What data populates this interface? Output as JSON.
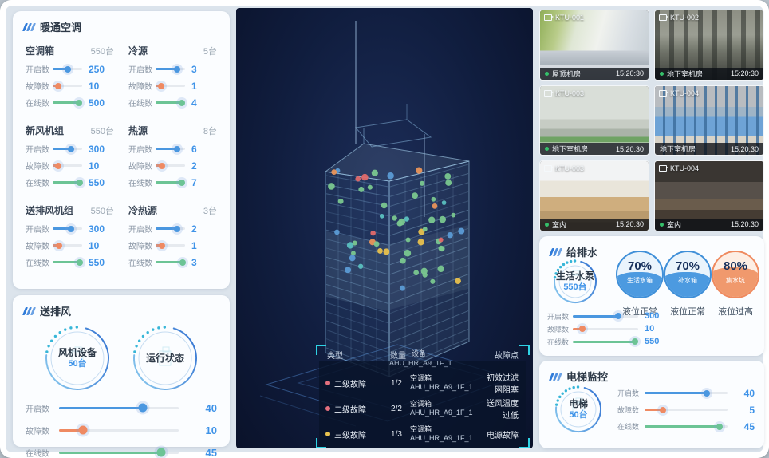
{
  "colors": {
    "blue": "#4a97e0",
    "orange": "#ef8a62",
    "green": "#6cc495",
    "value_text": "#3f93e8",
    "teal_bracket": "#2fd3e5",
    "dot_level2": "#e4707e",
    "dot_level3": "#e9c34f",
    "cam_online": "#35c06a"
  },
  "hvac": {
    "title": "暖通空调",
    "groups": [
      {
        "name": "空调箱",
        "unit": "550台",
        "sliders": [
          {
            "label": "开启数",
            "value": "250",
            "pct": 52,
            "color": "blue"
          },
          {
            "label": "故障数",
            "value": "10",
            "pct": 18,
            "color": "orange"
          },
          {
            "label": "在线数",
            "value": "500",
            "pct": 90,
            "color": "green"
          }
        ]
      },
      {
        "name": "冷源",
        "unit": "5台",
        "sliders": [
          {
            "label": "开启数",
            "value": "3",
            "pct": 72,
            "color": "blue"
          },
          {
            "label": "故障数",
            "value": "1",
            "pct": 18,
            "color": "orange"
          },
          {
            "label": "在线数",
            "value": "4",
            "pct": 88,
            "color": "green"
          }
        ]
      },
      {
        "name": "新风机组",
        "unit": "550台",
        "sliders": [
          {
            "label": "开启数",
            "value": "300",
            "pct": 62,
            "color": "blue"
          },
          {
            "label": "故障数",
            "value": "10",
            "pct": 20,
            "color": "orange"
          },
          {
            "label": "在线数",
            "value": "550",
            "pct": 92,
            "color": "green"
          }
        ]
      },
      {
        "name": "热源",
        "unit": "8台",
        "sliders": [
          {
            "label": "开启数",
            "value": "6",
            "pct": 72,
            "color": "blue"
          },
          {
            "label": "故障数",
            "value": "2",
            "pct": 22,
            "color": "orange"
          },
          {
            "label": "在线数",
            "value": "7",
            "pct": 88,
            "color": "green"
          }
        ]
      },
      {
        "name": "送排风机组",
        "unit": "550台",
        "sliders": [
          {
            "label": "开启数",
            "value": "300",
            "pct": 62,
            "color": "blue"
          },
          {
            "label": "故障数",
            "value": "10",
            "pct": 22,
            "color": "orange"
          },
          {
            "label": "在线数",
            "value": "550",
            "pct": 92,
            "color": "green"
          }
        ]
      },
      {
        "name": "冷热源",
        "unit": "3台",
        "sliders": [
          {
            "label": "开启数",
            "value": "2",
            "pct": 72,
            "color": "blue"
          },
          {
            "label": "故障数",
            "value": "1",
            "pct": 22,
            "color": "orange"
          },
          {
            "label": "在线数",
            "value": "3",
            "pct": 92,
            "color": "green"
          }
        ]
      }
    ]
  },
  "fan": {
    "title": "送排风",
    "gauges": [
      {
        "line1": "风机设备",
        "line2": "50台"
      },
      {
        "line1": "运行状态",
        "line2": ""
      }
    ],
    "sliders": [
      {
        "label": "开启数",
        "value": "40",
        "pct": 70,
        "color": "blue"
      },
      {
        "label": "故障数",
        "value": "10",
        "pct": 20,
        "color": "orange"
      },
      {
        "label": "在线数",
        "value": "45",
        "pct": 85,
        "color": "green"
      }
    ]
  },
  "center": {
    "fault_table": {
      "headers": [
        "类型",
        "数量",
        "设备",
        "故障点"
      ],
      "partial_row_text": "AHU_HR_A9_1F_1",
      "rows": [
        {
          "level": "二级故障",
          "severity": "level2",
          "count": "1/2",
          "device_type": "空调箱",
          "device_id": "AHU_HR_A9_1F_1",
          "fault": "初效过滤网阻塞"
        },
        {
          "level": "二级故障",
          "severity": "level2",
          "count": "2/2",
          "device_type": "空调箱",
          "device_id": "AHU_HR_A9_1F_1",
          "fault": "送风温度过低"
        },
        {
          "level": "三级故障",
          "severity": "level3",
          "count": "1/3",
          "device_type": "空调箱",
          "device_id": "AHU_HR_A9_1F_1",
          "fault": "电源故障"
        }
      ]
    }
  },
  "cameras": [
    {
      "id": "KTU-001",
      "location": "屋顶机房",
      "time": "15:20:30",
      "online": true,
      "scene": "rooftop"
    },
    {
      "id": "KTU-002",
      "location": "地下室机房",
      "time": "15:20:30",
      "online": true,
      "scene": "pump"
    },
    {
      "id": "KTU-003",
      "location": "地下室机房",
      "time": "15:20:30",
      "online": true,
      "scene": "chiller"
    },
    {
      "id": "KTU-004",
      "location": "地下室机房",
      "time": "15:20:30",
      "online": false,
      "scene": "compressor"
    },
    {
      "id": "KTU-003",
      "location": "室内",
      "time": "15:20:30",
      "online": true,
      "scene": "office-bright"
    },
    {
      "id": "KTU-004",
      "location": "室内",
      "time": "15:20:30",
      "online": true,
      "scene": "office-dark"
    }
  ],
  "water": {
    "title": "给排水",
    "gauge": {
      "line1": "生活水泵",
      "line2": "550台"
    },
    "tanks": [
      {
        "percent": "70%",
        "name": "生活水箱",
        "status": "液位正常",
        "theme": "blue"
      },
      {
        "percent": "70%",
        "name": "补水箱",
        "status": "液位正常",
        "theme": "blue"
      },
      {
        "percent": "80%",
        "name": "集水坑",
        "status": "液位过高",
        "theme": "orange"
      }
    ],
    "sliders": [
      {
        "label": "开启数",
        "value": "300",
        "pct": 70,
        "color": "blue"
      },
      {
        "label": "故障数",
        "value": "10",
        "pct": 15,
        "color": "orange"
      },
      {
        "label": "在线数",
        "value": "550",
        "pct": 95,
        "color": "green"
      }
    ]
  },
  "elevator": {
    "title": "电梯监控",
    "gauge": {
      "line1": "电梯",
      "line2": "50台"
    },
    "sliders": [
      {
        "label": "开启数",
        "value": "40",
        "pct": 75,
        "color": "blue"
      },
      {
        "label": "故障数",
        "value": "5",
        "pct": 22,
        "color": "orange"
      },
      {
        "label": "在线数",
        "value": "45",
        "pct": 90,
        "color": "green"
      }
    ]
  }
}
